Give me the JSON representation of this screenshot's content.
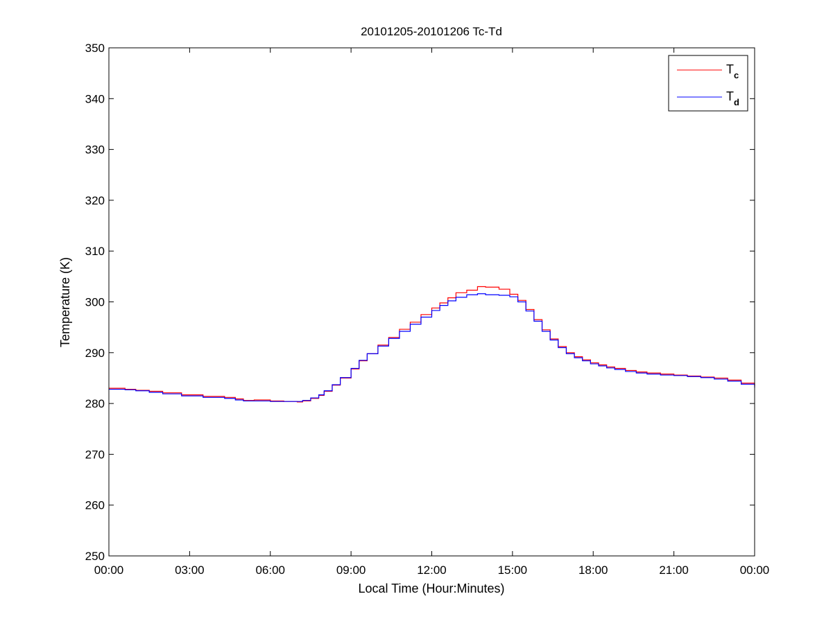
{
  "chart_data": {
    "type": "line",
    "title": "20101205-20101206 Tc-Td",
    "xlabel": "Local Time (Hour:Minutes)",
    "ylabel": "Temperature (K)",
    "xlim": [
      0,
      24
    ],
    "ylim": [
      250,
      350
    ],
    "x_ticks": [
      0,
      3,
      6,
      9,
      12,
      15,
      18,
      21,
      24
    ],
    "x_tick_labels": [
      "00:00",
      "03:00",
      "06:00",
      "09:00",
      "12:00",
      "15:00",
      "18:00",
      "21:00",
      "00:00"
    ],
    "y_ticks": [
      250,
      260,
      270,
      280,
      290,
      300,
      310,
      320,
      330,
      340,
      350
    ],
    "y_tick_labels": [
      "250",
      "260",
      "270",
      "280",
      "290",
      "300",
      "310",
      "320",
      "330",
      "340",
      "350"
    ],
    "grid": false,
    "box": true,
    "legend_position": "top-right",
    "series": [
      {
        "name_main": "T",
        "name_sub": "c",
        "color": "#ff0000",
        "x": [
          0,
          0.6,
          1.0,
          1.5,
          2.0,
          2.7,
          3.5,
          4.3,
          4.7,
          5.0,
          5.4,
          6.0,
          6.5,
          7.0,
          7.2,
          7.5,
          7.8,
          8.0,
          8.3,
          8.6,
          9.0,
          9.3,
          9.6,
          10.0,
          10.4,
          10.8,
          11.2,
          11.6,
          12.0,
          12.3,
          12.6,
          12.9,
          13.3,
          13.7,
          14.0,
          14.5,
          14.9,
          15.2,
          15.5,
          15.8,
          16.1,
          16.4,
          16.7,
          17.0,
          17.3,
          17.6,
          17.9,
          18.2,
          18.5,
          18.8,
          19.2,
          19.6,
          20.0,
          20.5,
          21.0,
          21.5,
          22.0,
          22.5,
          23.0,
          23.5,
          24.0
        ],
        "y": [
          283.0,
          282.8,
          282.6,
          282.4,
          282.1,
          281.7,
          281.4,
          281.2,
          280.9,
          280.6,
          280.7,
          280.5,
          280.4,
          280.3,
          280.5,
          281.0,
          281.6,
          282.4,
          283.6,
          285.0,
          286.8,
          288.4,
          289.8,
          291.5,
          293.0,
          294.6,
          296.0,
          297.5,
          298.8,
          299.8,
          300.8,
          301.8,
          302.3,
          303.0,
          302.9,
          302.5,
          301.5,
          300.3,
          298.5,
          296.5,
          294.5,
          292.7,
          291.2,
          290.0,
          289.2,
          288.6,
          288.0,
          287.6,
          287.2,
          286.9,
          286.5,
          286.2,
          286.0,
          285.8,
          285.6,
          285.4,
          285.2,
          285.0,
          284.6,
          284.0,
          283.4
        ]
      },
      {
        "name_main": "T",
        "name_sub": "d",
        "color": "#0000ff",
        "x": [
          0,
          0.6,
          1.0,
          1.5,
          2.0,
          2.7,
          3.5,
          4.3,
          4.7,
          5.0,
          5.4,
          6.0,
          6.5,
          7.0,
          7.2,
          7.5,
          7.8,
          8.0,
          8.3,
          8.6,
          9.0,
          9.3,
          9.6,
          10.0,
          10.4,
          10.8,
          11.2,
          11.6,
          12.0,
          12.3,
          12.6,
          12.9,
          13.3,
          13.7,
          14.0,
          14.5,
          14.9,
          15.2,
          15.5,
          15.8,
          16.1,
          16.4,
          16.7,
          17.0,
          17.3,
          17.6,
          17.9,
          18.2,
          18.5,
          18.8,
          19.2,
          19.6,
          20.0,
          20.5,
          21.0,
          21.5,
          22.0,
          22.5,
          23.0,
          23.5,
          24.0
        ],
        "y": [
          282.8,
          282.7,
          282.5,
          282.2,
          281.9,
          281.5,
          281.2,
          281.0,
          280.7,
          280.5,
          280.5,
          280.4,
          280.4,
          280.4,
          280.6,
          281.1,
          281.7,
          282.5,
          283.7,
          285.1,
          286.9,
          288.5,
          289.8,
          291.3,
          292.8,
          294.2,
          295.6,
          297.0,
          298.3,
          299.3,
          300.2,
          300.9,
          301.4,
          301.6,
          301.4,
          301.3,
          301.0,
          300.0,
          298.2,
          296.2,
          294.2,
          292.5,
          291.0,
          289.8,
          289.0,
          288.4,
          287.8,
          287.4,
          287.0,
          286.7,
          286.3,
          286.0,
          285.8,
          285.6,
          285.5,
          285.3,
          285.1,
          284.8,
          284.4,
          283.8,
          283.1
        ]
      }
    ]
  }
}
